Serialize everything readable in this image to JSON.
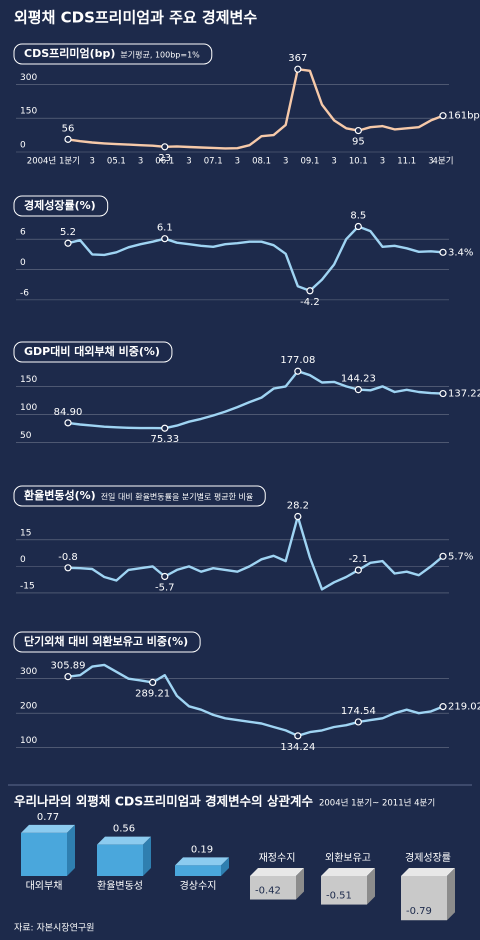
{
  "header": {
    "title": "외평채 CDS프리미엄과 주요 경제변수"
  },
  "chart_data": [
    {
      "type": "line",
      "title": "CDS프리미엄(bp)",
      "subtitle": "분기평균, 100bp=1%",
      "categories": [
        "2004년 1분기",
        null,
        "3",
        null,
        "05.1",
        null,
        "3",
        null,
        "06.1",
        null,
        "3",
        null,
        "07.1",
        null,
        "3",
        null,
        "08.1",
        null,
        "3",
        null,
        "09.1",
        null,
        "3",
        null,
        "10.1",
        null,
        "3",
        null,
        "11.1",
        null,
        "3",
        "4분기"
      ],
      "values": [
        56,
        48,
        42,
        38,
        35,
        33,
        30,
        28,
        23,
        25,
        22,
        20,
        18,
        16,
        17,
        30,
        70,
        75,
        120,
        367,
        360,
        210,
        140,
        105,
        95,
        110,
        115,
        100,
        105,
        110,
        140,
        161
      ],
      "value_labels": [
        "56",
        null,
        null,
        null,
        null,
        null,
        null,
        null,
        "23",
        null,
        null,
        null,
        null,
        null,
        null,
        null,
        null,
        null,
        null,
        "367",
        null,
        null,
        null,
        null,
        "95",
        null,
        null,
        null,
        null,
        null,
        null,
        "161bp"
      ],
      "color": "#f6c9a9",
      "ylim": [
        0,
        390
      ],
      "yticks": [
        0,
        150,
        300
      ]
    },
    {
      "type": "line",
      "title": "경제성장률(%)",
      "values": [
        5.2,
        5.8,
        3.0,
        2.9,
        3.4,
        4.4,
        5.0,
        5.5,
        6.1,
        5.3,
        5.0,
        4.7,
        4.5,
        5.0,
        5.2,
        5.5,
        5.5,
        4.8,
        3.1,
        -3.3,
        -4.2,
        -2.0,
        1.0,
        6.0,
        8.5,
        7.6,
        4.5,
        4.7,
        4.2,
        3.5,
        3.6,
        3.4
      ],
      "value_labels": [
        "5.2",
        null,
        null,
        null,
        null,
        null,
        null,
        null,
        "6.1",
        null,
        null,
        null,
        null,
        null,
        null,
        null,
        null,
        null,
        null,
        null,
        "-4.2",
        null,
        null,
        null,
        "8.5",
        null,
        null,
        null,
        null,
        null,
        null,
        "3.4%"
      ],
      "color": "#9fd4f3",
      "ylim": [
        -8,
        9
      ],
      "yticks": [
        -6,
        0,
        6
      ]
    },
    {
      "type": "line",
      "title": "GDP대비 대외부채 비중(%)",
      "values": [
        84.9,
        82,
        80,
        78,
        77,
        76,
        75.5,
        75.5,
        75.33,
        80,
        87,
        92,
        98,
        105,
        113,
        122,
        130,
        146,
        150,
        177.08,
        170,
        157,
        158,
        150,
        144.23,
        143,
        150,
        140,
        144,
        140,
        138,
        137.22
      ],
      "value_labels": [
        "84.90",
        null,
        null,
        null,
        null,
        null,
        null,
        null,
        "75.33",
        null,
        null,
        null,
        null,
        null,
        null,
        null,
        null,
        null,
        null,
        "177.08",
        null,
        null,
        null,
        null,
        "144.23",
        null,
        null,
        null,
        null,
        null,
        null,
        "137.22%"
      ],
      "color": "#9fd4f3",
      "ylim": [
        40,
        190
      ],
      "yticks": [
        50,
        100,
        150
      ]
    },
    {
      "type": "line",
      "title": "환율변동성(%)",
      "subtitle": "전일 대비 환율변동률을 분기별로 평균한 비율",
      "values": [
        -0.8,
        -1,
        -1.5,
        -6,
        -8,
        -2,
        -1,
        0,
        -5.7,
        -2,
        0,
        -3,
        -1,
        -2,
        -3,
        0,
        4,
        6,
        3,
        28.2,
        5,
        -13,
        -9,
        -6,
        -2.1,
        2,
        3,
        -4,
        -3,
        -5,
        0,
        5.7
      ],
      "value_labels": [
        "-0.8",
        null,
        null,
        null,
        null,
        null,
        null,
        null,
        "-5.7",
        null,
        null,
        null,
        null,
        null,
        null,
        null,
        null,
        null,
        null,
        "28.2",
        null,
        null,
        null,
        null,
        "-2.1",
        null,
        null,
        null,
        null,
        null,
        null,
        "5.7%"
      ],
      "color": "#9fd4f3",
      "ylim": [
        -19,
        33
      ],
      "yticks": [
        -15,
        0,
        15
      ]
    },
    {
      "type": "line",
      "title": "단기외채 대비 외환보유고 비중(%)",
      "values": [
        305.89,
        310,
        335,
        340,
        320,
        300,
        295,
        289.21,
        310,
        250,
        220,
        210,
        195,
        185,
        180,
        175,
        170,
        160,
        150,
        134.24,
        145,
        150,
        160,
        165,
        174.54,
        180,
        185,
        200,
        210,
        200,
        205,
        219.02
      ],
      "value_labels": [
        "305.89",
        null,
        null,
        null,
        null,
        null,
        null,
        "289.21",
        null,
        null,
        null,
        null,
        null,
        null,
        null,
        null,
        null,
        null,
        null,
        "134.24",
        null,
        null,
        null,
        null,
        "174.54",
        null,
        null,
        null,
        null,
        null,
        null,
        "219.02%"
      ],
      "color": "#9fd4f3",
      "ylim": [
        70,
        360
      ],
      "yticks": [
        100,
        200,
        300
      ]
    },
    {
      "type": "bar",
      "title": "우리나라의 외평채 CDS프리미엄과 경제변수의 상관계수",
      "subtitle": "2004년 1분기~ 2011년 4분기",
      "categories": [
        "대외부채",
        "환율변동성",
        "경상수지",
        "재정수지",
        "외환보유고",
        "경제성장률"
      ],
      "values": [
        0.77,
        0.56,
        0.19,
        -0.42,
        -0.51,
        -0.79
      ],
      "color": "#4aa7dc",
      "negative_color": "#c9c9c9"
    }
  ],
  "source": "자료: 자본시장연구원"
}
